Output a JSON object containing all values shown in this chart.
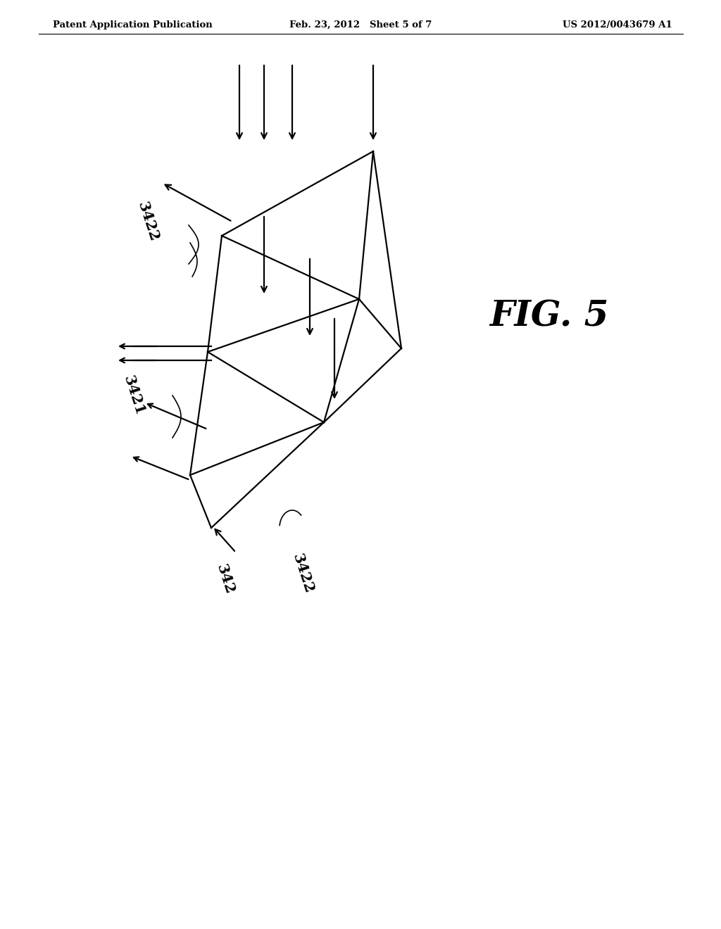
{
  "bg_color": "#ffffff",
  "line_color": "#000000",
  "header_left": "Patent Application Publication",
  "header_center": "Feb. 23, 2012   Sheet 5 of 7",
  "header_right": "US 2012/0043679 A1",
  "fig_label": "FIG. 5",
  "label_342": "342",
  "label_3421": "3421",
  "label_3422_top": "3422",
  "label_3422_bot": "3422",
  "lw": 1.6,
  "header_fontsize": 9.5,
  "label_fontsize": 15,
  "fig_fontsize": 36
}
